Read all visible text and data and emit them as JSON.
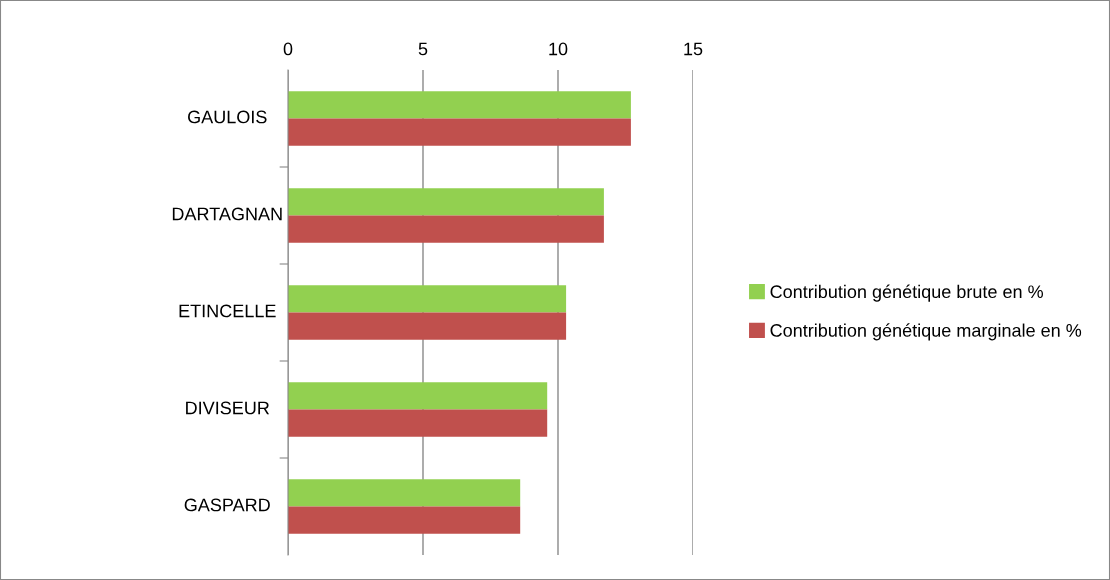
{
  "chart_data": {
    "type": "bar",
    "orientation": "horizontal",
    "categories": [
      "GAULOIS",
      "DARTAGNAN",
      "ETINCELLE",
      "DIVISEUR",
      "GASPARD"
    ],
    "series": [
      {
        "name": "Contribution génétique brute en %",
        "color": "#92d050",
        "values": [
          12.7,
          11.7,
          10.3,
          9.6,
          8.6
        ]
      },
      {
        "name": "Contribution génétique marginale en %",
        "color": "#c0504d",
        "values": [
          12.7,
          11.7,
          10.3,
          9.6,
          8.6
        ]
      }
    ],
    "xlim": [
      0,
      15
    ],
    "xticks": [
      0,
      5,
      10,
      15
    ],
    "grid": "x",
    "legend": "right"
  }
}
